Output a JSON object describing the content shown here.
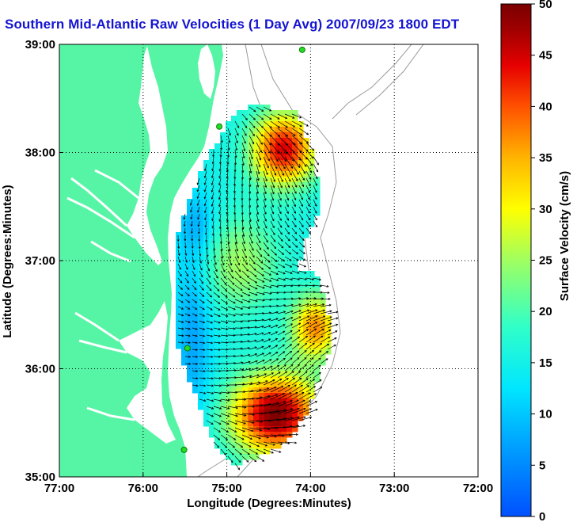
{
  "title": "Southern Mid-Atlantic Raw Velocities (1 Day Avg) 2007/09/23 1800 EDT",
  "map": {
    "xlabel": "Longitude (Degrees:Minutes)",
    "ylabel": "Latitude (Degrees:Minutes)",
    "x_ticks": [
      "77:00",
      "76:00",
      "75:00",
      "74:00",
      "73:00",
      "72:00"
    ],
    "y_ticks": [
      "39:00",
      "38:00",
      "37:00",
      "36:00",
      "35:00"
    ],
    "lon_range": [
      -77,
      -72
    ],
    "lat_range": [
      35,
      39
    ],
    "land_color": "#55f5a5",
    "grid": true,
    "grid_style": "dotted"
  },
  "colorbar": {
    "label": "Surface Velocity (cm/s)",
    "ticks": [
      "0",
      "5",
      "10",
      "15",
      "20",
      "25",
      "30",
      "35",
      "40",
      "45",
      "50"
    ],
    "range": [
      0,
      50
    ],
    "colormap": "jet"
  },
  "stations": [
    {
      "lon": -74.1,
      "lat": 38.95
    },
    {
      "lon": -75.09,
      "lat": 38.24
    },
    {
      "lon": -75.47,
      "lat": 36.19
    },
    {
      "lon": -75.51,
      "lat": 35.25
    }
  ]
}
